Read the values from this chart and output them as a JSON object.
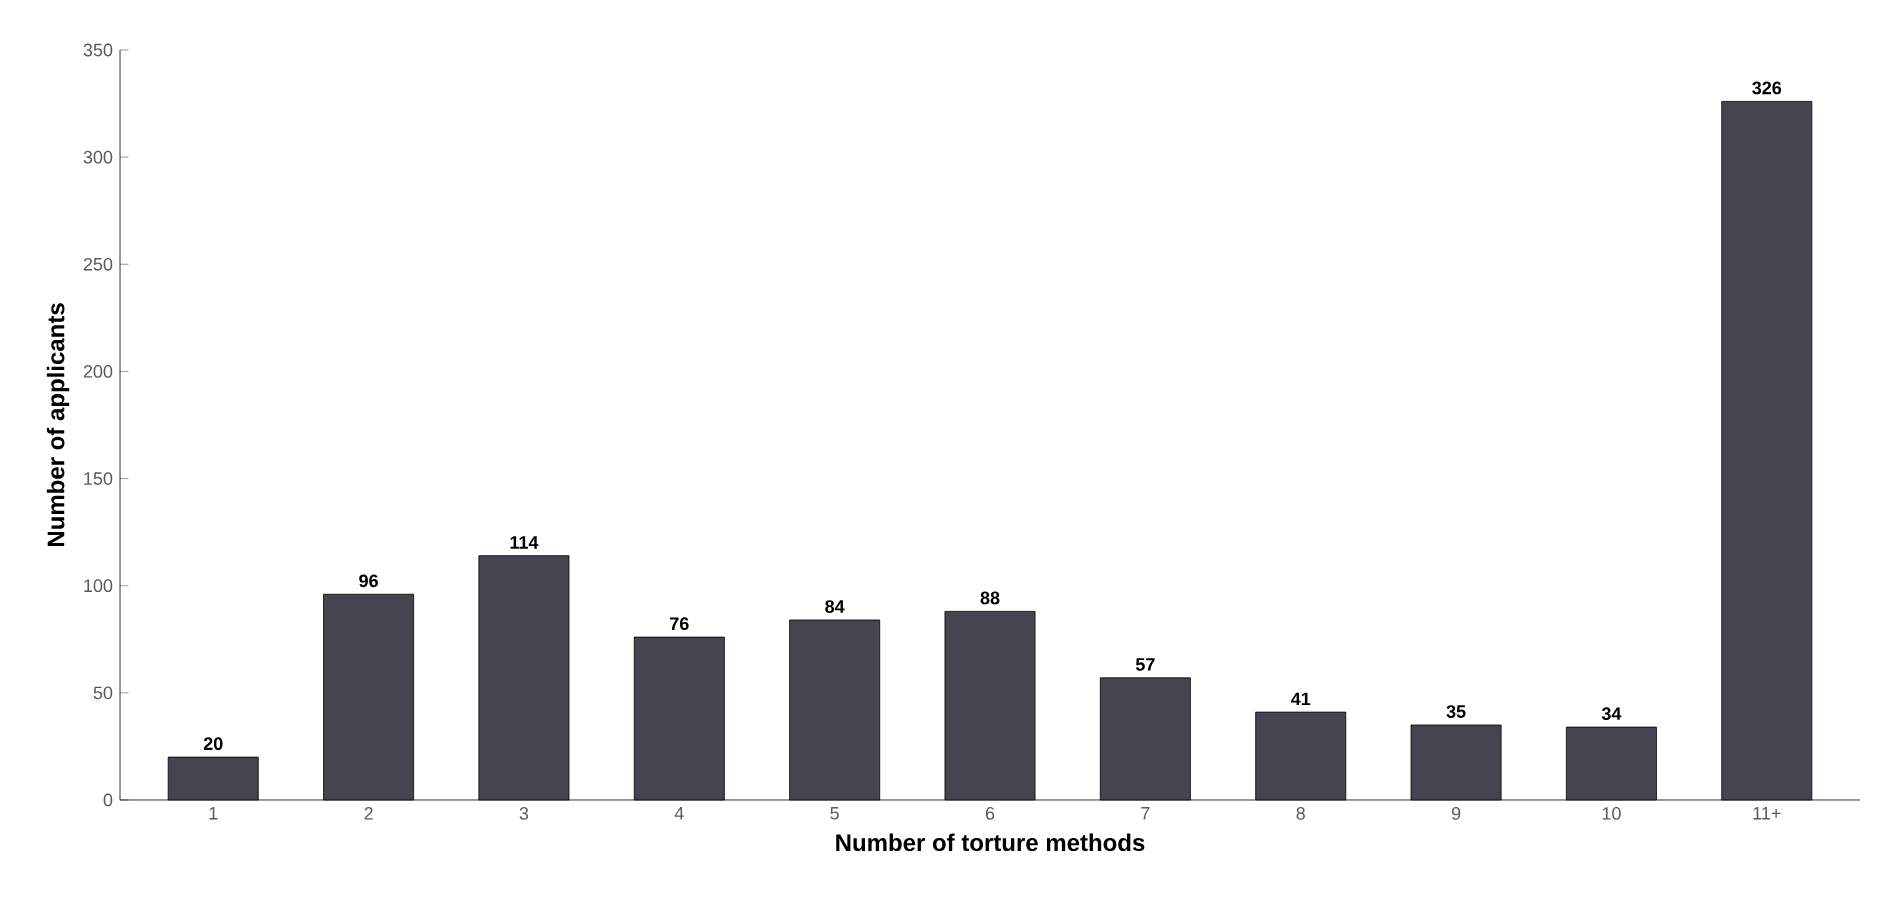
{
  "chart_data": {
    "type": "bar",
    "xlabel": "Number of torture methods",
    "ylabel": "Number of applicants",
    "categories": [
      "1",
      "2",
      "3",
      "4",
      "5",
      "6",
      "7",
      "8",
      "9",
      "10",
      "11+"
    ],
    "values": [
      20,
      96,
      114,
      76,
      84,
      88,
      57,
      41,
      35,
      34,
      326
    ],
    "color": "#45454f",
    "ylim": [
      0,
      350
    ],
    "yticks": [
      0,
      50,
      100,
      150,
      200,
      250,
      300,
      350
    ],
    "data_labels": true
  }
}
